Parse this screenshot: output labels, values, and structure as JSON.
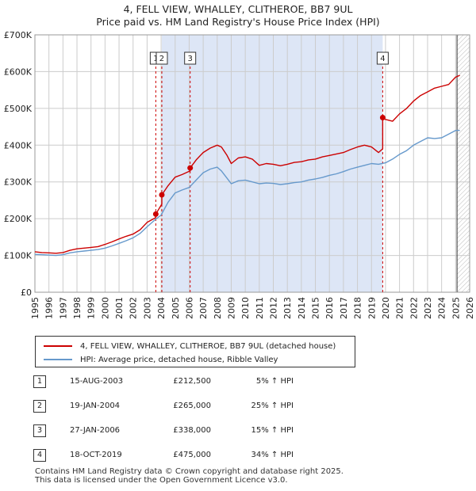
{
  "header": {
    "line1": "4, FELL VIEW, WHALLEY, CLITHEROE, BB7 9UL",
    "line2": "Price paid vs. HM Land Registry's House Price Index (HPI)"
  },
  "colors": {
    "property": "#cc0000",
    "hpi": "#6699cc",
    "shade": "#dde6f6",
    "grid": "#cccccc",
    "marker_line": "#cc0000"
  },
  "legend": {
    "property_label": "4, FELL VIEW, WHALLEY, CLITHEROE, BB7 9UL (detached house)",
    "hpi_label": "HPI: Average price, detached house, Ribble Valley"
  },
  "sales": [
    {
      "num": "1",
      "date": "15-AUG-2003",
      "price": "£212,500",
      "hpi": "5% ↑ HPI"
    },
    {
      "num": "2",
      "date": "19-JAN-2004",
      "price": "£265,000",
      "hpi": "25% ↑ HPI"
    },
    {
      "num": "3",
      "date": "27-JAN-2006",
      "price": "£338,000",
      "hpi": "15% ↑ HPI"
    },
    {
      "num": "4",
      "date": "18-OCT-2019",
      "price": "£475,000",
      "hpi": "34% ↑ HPI"
    }
  ],
  "footer": {
    "line1": "Contains HM Land Registry data © Crown copyright and database right 2025.",
    "line2": "This data is licensed under the Open Government Licence v3.0."
  },
  "chart_data": {
    "type": "line",
    "title": "4, FELL VIEW, WHALLEY, CLITHEROE, BB7 9UL",
    "subtitle": "Price paid vs. HM Land Registry's House Price Index (HPI)",
    "xlabel": "",
    "ylabel": "",
    "xlim": [
      1995,
      2026
    ],
    "ylim": [
      0,
      700000
    ],
    "x_ticks": [
      "1995",
      "1996",
      "1997",
      "1998",
      "1999",
      "2000",
      "2001",
      "2002",
      "2003",
      "2004",
      "2005",
      "2006",
      "2007",
      "2008",
      "2009",
      "2010",
      "2011",
      "2012",
      "2013",
      "2014",
      "2015",
      "2016",
      "2017",
      "2018",
      "2019",
      "2020",
      "2021",
      "2022",
      "2023",
      "2024",
      "2025",
      "2026"
    ],
    "y_ticks": [
      {
        "value": 0,
        "label": "£0"
      },
      {
        "value": 100000,
        "label": "£100K"
      },
      {
        "value": 200000,
        "label": "£200K"
      },
      {
        "value": 300000,
        "label": "£300K"
      },
      {
        "value": 400000,
        "label": "£400K"
      },
      {
        "value": 500000,
        "label": "£500K"
      },
      {
        "value": 600000,
        "label": "£600K"
      },
      {
        "value": 700000,
        "label": "£700K"
      }
    ],
    "shaded_period": [
      2004.05,
      2019.8
    ],
    "forecast_from": 2025.1,
    "sale_markers": [
      {
        "label": "1",
        "x": 2003.62,
        "y": 212500
      },
      {
        "label": "2",
        "x": 2004.05,
        "y": 265000
      },
      {
        "label": "3",
        "x": 2006.07,
        "y": 338000
      },
      {
        "label": "4",
        "x": 2019.8,
        "y": 475000
      }
    ],
    "series": [
      {
        "name": "4, FELL VIEW, WHALLEY, CLITHEROE, BB7 9UL (detached house)",
        "x": [
          1995,
          1995.5,
          1996,
          1996.5,
          1997,
          1997.5,
          1998,
          1998.5,
          1999,
          1999.5,
          2000,
          2000.5,
          2001,
          2001.5,
          2002,
          2002.5,
          2003,
          2003.62,
          2003.62,
          2004.05,
          2004.05,
          2004.5,
          2005,
          2005.5,
          2006.07,
          2006.07,
          2006.5,
          2007,
          2007.5,
          2008,
          2008.3,
          2008.7,
          2009,
          2009.5,
          2010,
          2010.5,
          2011,
          2011.5,
          2012,
          2012.5,
          2013,
          2013.5,
          2014,
          2014.5,
          2015,
          2015.5,
          2016,
          2016.5,
          2017,
          2017.5,
          2018,
          2018.5,
          2019,
          2019.5,
          2019.8,
          2019.8,
          2020,
          2020.5,
          2021,
          2021.5,
          2022,
          2022.5,
          2023,
          2023.5,
          2024,
          2024.5,
          2025,
          2025.3
        ],
        "y": [
          110000,
          108000,
          107000,
          106000,
          108000,
          114000,
          118000,
          120000,
          122000,
          124000,
          130000,
          137000,
          145000,
          152000,
          158000,
          170000,
          190000,
          203000,
          212500,
          240000,
          265000,
          290000,
          313000,
          320000,
          330000,
          338000,
          360000,
          380000,
          392000,
          400000,
          395000,
          372000,
          350000,
          365000,
          368000,
          362000,
          345000,
          350000,
          348000,
          344000,
          348000,
          353000,
          355000,
          360000,
          362000,
          368000,
          372000,
          376000,
          380000,
          388000,
          395000,
          400000,
          395000,
          380000,
          390000,
          475000,
          470000,
          465000,
          485000,
          500000,
          520000,
          535000,
          545000,
          555000,
          560000,
          565000,
          585000,
          590000
        ]
      },
      {
        "name": "HPI: Average price, detached house, Ribble Valley",
        "x": [
          1995,
          1995.5,
          1996,
          1996.5,
          1997,
          1997.5,
          1998,
          1998.5,
          1999,
          1999.5,
          2000,
          2000.5,
          2001,
          2001.5,
          2002,
          2002.5,
          2003,
          2003.5,
          2004,
          2004.5,
          2005,
          2005.5,
          2006,
          2006.5,
          2007,
          2007.5,
          2008,
          2008.3,
          2008.7,
          2009,
          2009.5,
          2010,
          2010.5,
          2011,
          2011.5,
          2012,
          2012.5,
          2013,
          2013.5,
          2014,
          2014.5,
          2015,
          2015.5,
          2016,
          2016.5,
          2017,
          2017.5,
          2018,
          2018.5,
          2019,
          2019.5,
          2020,
          2020.5,
          2021,
          2021.5,
          2022,
          2022.5,
          2023,
          2023.5,
          2024,
          2024.5,
          2025,
          2025.3
        ],
        "y": [
          103000,
          102000,
          101000,
          100000,
          102000,
          107000,
          110000,
          112000,
          114000,
          116000,
          120000,
          126000,
          133000,
          140000,
          148000,
          160000,
          178000,
          195000,
          210000,
          245000,
          270000,
          278000,
          285000,
          305000,
          325000,
          335000,
          340000,
          330000,
          310000,
          295000,
          303000,
          305000,
          300000,
          295000,
          297000,
          296000,
          293000,
          295000,
          298000,
          300000,
          305000,
          308000,
          312000,
          318000,
          322000,
          328000,
          335000,
          340000,
          345000,
          350000,
          348000,
          352000,
          362000,
          375000,
          385000,
          400000,
          410000,
          420000,
          418000,
          420000,
          430000,
          440000,
          440000
        ]
      }
    ]
  }
}
